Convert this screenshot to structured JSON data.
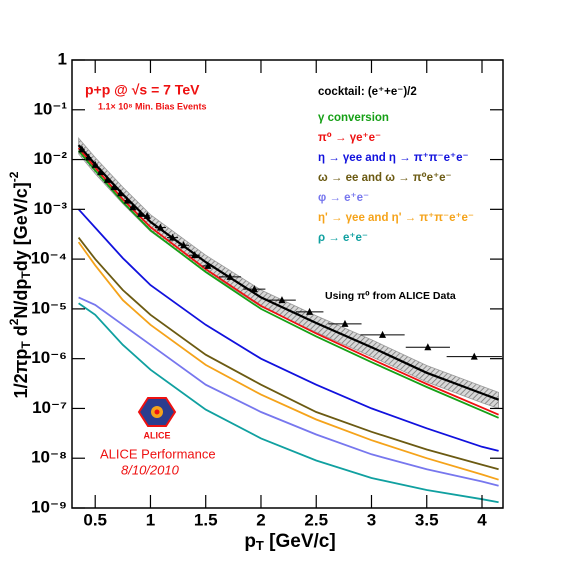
{
  "chart_data": {
    "type": "line",
    "yscale": "log",
    "title": "p+p @ √s = 7 TeV",
    "subtitle": "1.1× 10⁸ Min. Bias Events",
    "legend_title": "cocktail: (e⁺+e⁻)/2",
    "annotation": "Using π⁰ from ALICE Data",
    "logo_text": "ALICE",
    "performance": "ALICE Performance",
    "date": "8/10/2010",
    "x_label": [
      "p",
      "T",
      " [GeV/c]"
    ],
    "y_label": [
      "1/2πp",
      "T",
      " d",
      "2",
      "N/dp",
      "T",
      "dy [GeV/c]",
      "-2"
    ],
    "xlim": [
      0.29,
      4.19
    ],
    "ylim": [
      1e-09,
      1
    ],
    "xticks": [
      0.5,
      1,
      1.5,
      2,
      2.5,
      3,
      3.5,
      4
    ],
    "yticks": [
      {
        "value": 1e-09,
        "label": "10⁻⁹"
      },
      {
        "value": 1e-08,
        "label": "10⁻⁸"
      },
      {
        "value": 1e-07,
        "label": "10⁻⁷"
      },
      {
        "value": 1e-06,
        "label": "10⁻⁶"
      },
      {
        "value": 1e-05,
        "label": "10⁻⁵"
      },
      {
        "value": 0.0001,
        "label": "10⁻⁴"
      },
      {
        "value": 0.001,
        "label": "10⁻³"
      },
      {
        "value": 0.01,
        "label": "10⁻²"
      },
      {
        "value": 0.1,
        "label": "10⁻¹"
      },
      1
    ],
    "x": [
      0.35,
      0.5,
      0.75,
      1,
      1.5,
      2,
      2.5,
      3,
      3.5,
      4,
      4.15
    ],
    "sum_curve": {
      "color": "#000000",
      "values": [
        0.0195,
        0.008,
        0.002,
        0.00056,
        8.7e-05,
        1.7e-05,
        5.2e-06,
        1.7e-06,
        5.2e-07,
        2e-07,
        1.5e-07
      ],
      "band_upper": [
        0.027,
        0.011,
        0.0028,
        0.00078,
        0.00012,
        2.4e-05,
        7.3e-06,
        2.4e-06,
        7.3e-07,
        2.8e-07,
        2.1e-07
      ],
      "band_lower": [
        0.013,
        0.0052,
        0.0013,
        0.00036,
        5.7e-05,
        1.1e-05,
        3.4e-06,
        1.1e-06,
        3.4e-07,
        1.3e-07,
        1e-07
      ],
      "band_color": "#9a9a9a"
    },
    "series": [
      {
        "name": "γ conversion",
        "color": "#16a016",
        "values": [
          0.015,
          0.006,
          0.0014,
          0.00038,
          5.5e-05,
          1e-05,
          2.8e-06,
          8.5e-07,
          2.7e-07,
          9e-08,
          6.5e-08
        ]
      },
      {
        "name": "π⁰ → γe⁺e⁻",
        "color": "#ee1111",
        "values": [
          0.017,
          0.0069,
          0.0016,
          0.00044,
          6.3e-05,
          1.15e-05,
          3.2e-06,
          9.8e-07,
          3.1e-07,
          1.04e-07,
          7.5e-08
        ]
      },
      {
        "name": "η → γee and η → π⁺π⁻e⁺e⁻",
        "color": "#1111dd",
        "values": [
          0.001,
          0.00043,
          0.000105,
          3e-05,
          4.8e-06,
          1e-06,
          3e-07,
          1e-07,
          4e-08,
          1.7e-08,
          1.4e-08
        ]
      },
      {
        "name": "ω → ee and ω → π⁰e⁺e⁻",
        "color": "#6b5a12",
        "values": [
          0.00027,
          0.0001,
          2.4e-05,
          7.6e-06,
          1.2e-06,
          3e-07,
          8.5e-08,
          3.4e-08,
          1.5e-08,
          7.4e-09,
          6e-09
        ]
      },
      {
        "name": "φ → e⁺e⁻",
        "color": "#7777ee",
        "values": [
          1.7e-05,
          1.2e-05,
          4.8e-06,
          1.9e-06,
          3e-07,
          8.5e-08,
          3e-08,
          1.2e-08,
          6e-09,
          3.4e-09,
          2.8e-09
        ]
      },
      {
        "name": "η' → γee and η' → π⁺π⁻e⁺e⁻",
        "color": "#f5a31a",
        "values": [
          0.00022,
          7.5e-05,
          1.5e-05,
          4.8e-06,
          7.5e-07,
          1.9e-07,
          6e-08,
          2.3e-08,
          1e-08,
          4.7e-09,
          3.7e-09
        ]
      },
      {
        "name": "ρ → e⁺e⁻",
        "color": "#10a0a0",
        "values": [
          1.3e-05,
          7.6e-06,
          1.9e-06,
          6e-07,
          9.5e-08,
          2.5e-08,
          9e-09,
          4e-09,
          2.3e-09,
          1.5e-09,
          1.3e-09
        ]
      }
    ],
    "data_points": {
      "color": "#000000",
      "x": [
        0.38,
        0.44,
        0.5,
        0.55,
        0.61,
        0.67,
        0.73,
        0.79,
        0.84,
        0.91,
        0.97,
        1.09,
        1.2,
        1.3,
        1.4,
        1.52,
        1.72,
        1.94,
        2.19,
        2.44,
        2.76,
        3.1,
        3.51,
        3.93
      ],
      "values": [
        0.016,
        0.011,
        0.0078,
        0.0056,
        0.0039,
        0.0028,
        0.0021,
        0.0015,
        0.0011,
        0.00081,
        0.00074,
        0.00043,
        0.00027,
        0.00019,
        0.00012,
        7.3e-05,
        4.4e-05,
        2.5e-05,
        1.5e-05,
        8.7e-06,
        5e-06,
        3e-06,
        1.7e-06,
        1.1e-06
      ],
      "xerr": [
        0.025,
        0.025,
        0.025,
        0.025,
        0.025,
        0.025,
        0.025,
        0.025,
        0.025,
        0.025,
        0.025,
        0.05,
        0.05,
        0.05,
        0.05,
        0.05,
        0.1,
        0.1,
        0.125,
        0.125,
        0.15,
        0.2,
        0.2,
        0.25
      ]
    }
  }
}
